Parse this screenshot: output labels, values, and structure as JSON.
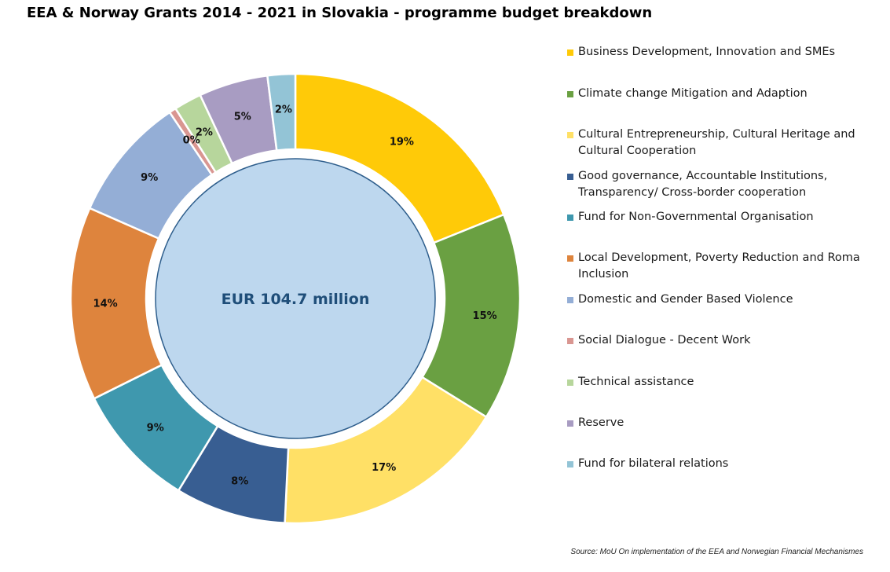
{
  "title": "EEA & Norway Grants 2014 - 2021 in Slovakia - programme budget breakdown",
  "source": "Source: MoU On implementation of the EEA and Norwegian Financial Mechanismes",
  "chart_data": {
    "type": "pie",
    "center_label": "EUR 104.7 million",
    "legend_position": "right",
    "slices": [
      {
        "name": "Business Development, Innovation and SMEs",
        "value": 19,
        "label": "19%",
        "color": "#FFCA08"
      },
      {
        "name": "Climate change Mitigation and Adaption",
        "value": 15,
        "label": "15%",
        "color": "#6AA042"
      },
      {
        "name": "Cultural Entrepreneurship, Cultural Heritage and Cultural Cooperation",
        "value": 17,
        "label": "17%",
        "color": "#FFE066"
      },
      {
        "name": "Good governance, Accountable Institutions, Transparency/ Cross-border cooperation",
        "value": 8,
        "label": "8%",
        "color": "#385E92"
      },
      {
        "name": "Fund for Non-Governmental Organisation",
        "value": 9,
        "label": "9%",
        "color": "#3F98AE"
      },
      {
        "name": "Local Development, Poverty Reduction and Roma Inclusion",
        "value": 14,
        "label": "14%",
        "color": "#DE843D"
      },
      {
        "name": "Domestic and Gender Based Violence",
        "value": 9,
        "label": "9%",
        "color": "#94AED6"
      },
      {
        "name": "Social Dialogue - Decent Work",
        "value": 0.5,
        "label": "0%",
        "color": "#D99691"
      },
      {
        "name": "Technical assistance",
        "value": 2,
        "label": "2%",
        "color": "#B7D69C"
      },
      {
        "name": "Reserve",
        "value": 5,
        "label": "5%",
        "color": "#A89CC2"
      },
      {
        "name": "Fund for bilateral relations",
        "value": 2,
        "label": "2%",
        "color": "#93C4D6"
      }
    ]
  }
}
